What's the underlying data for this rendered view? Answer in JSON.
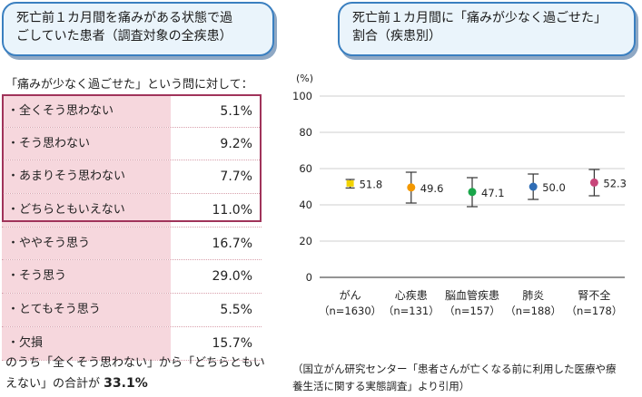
{
  "left_title": {
    "line1": "死亡前１カ月間を痛みがある状態で過",
    "line2": "ごしていた患者（調査対象の全疾患）"
  },
  "right_title": {
    "line1": "死亡前１カ月間に「痛みが少なく過ごせた」",
    "line2": "割合（疾患別）"
  },
  "question": "「痛みが少なく過ごせた」という問に対して：",
  "responses": [
    {
      "label": "・全くそう思わない",
      "value": "5.1%"
    },
    {
      "label": "・そう思わない",
      "value": "9.2%"
    },
    {
      "label": "・あまりそう思わない",
      "value": "7.7%"
    },
    {
      "label": "・どちらともいえない",
      "value": "11.0%"
    },
    {
      "label": "・ややそう思う",
      "value": "16.7%"
    },
    {
      "label": "・そう思う",
      "value": "29.0%"
    },
    {
      "label": "・とてもそう思う",
      "value": "5.5%"
    },
    {
      "label": "・欠損",
      "value": "15.7%"
    }
  ],
  "summary": {
    "line1": "のうち「全くそう思わない」から「どちらともい",
    "line2": "えない」の合計が",
    "total": "33.1%"
  },
  "source": {
    "line1": "（国立がん研究センター「患者さんが亡くなる前に利用した医療や療",
    "line2": "養生活に関する実態調査」より引用）"
  },
  "chart_data": {
    "type": "scatter",
    "unit_label": "(%)",
    "ylim": [
      0,
      100
    ],
    "yticks": [
      0,
      20,
      40,
      60,
      80,
      100
    ],
    "grid": true,
    "categories": [
      "がん",
      "心疾患",
      "脳血管疾患",
      "肺炎",
      "腎不全"
    ],
    "sample_sizes": [
      "（n=1630）",
      "（n=131）",
      "（n=157）",
      "（n=188）",
      "（n=178）"
    ],
    "values": [
      51.8,
      49.6,
      47.1,
      50.0,
      52.3
    ],
    "value_labels": [
      "51.8",
      "49.6",
      "47.1",
      "50.0",
      "52.3"
    ],
    "ci_low": [
      49.3,
      41.0,
      39.0,
      43.0,
      45.0
    ],
    "ci_high": [
      54.0,
      58.0,
      55.0,
      57.0,
      59.5
    ],
    "colors": [
      "#f2d300",
      "#f39800",
      "#1aa64a",
      "#2f6db5",
      "#c8467a"
    ]
  }
}
